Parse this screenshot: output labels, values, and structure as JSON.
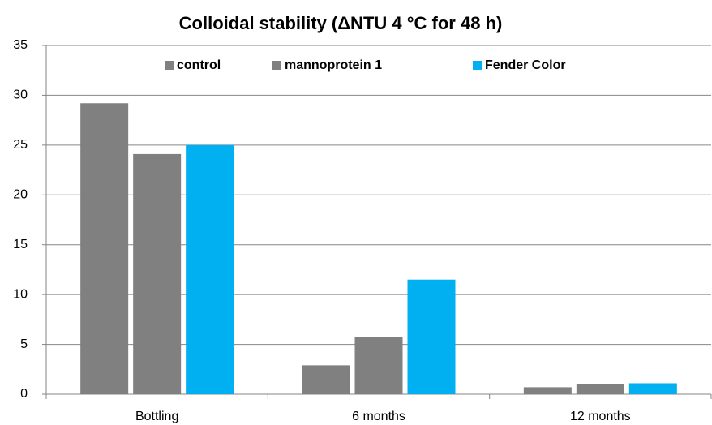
{
  "chart_data": {
    "type": "bar",
    "title": "Colloidal stability (ΔNTU 4 °C for 48 h)",
    "categories": [
      "Bottling",
      "6 months",
      "12 months"
    ],
    "series": [
      {
        "name": "control",
        "color": "#808080",
        "values": [
          29.2,
          2.9,
          0.7
        ]
      },
      {
        "name": "mannoprotein 1",
        "color": "#808080",
        "values": [
          24.1,
          5.7,
          1.0
        ]
      },
      {
        "name": "Fender Color",
        "color": "#00b0f0",
        "values": [
          25.0,
          11.5,
          1.1
        ]
      }
    ],
    "ylim": [
      0,
      35
    ],
    "yticks": [
      0,
      5,
      10,
      15,
      20,
      25,
      30,
      35
    ],
    "grid": true,
    "legend": "top"
  }
}
